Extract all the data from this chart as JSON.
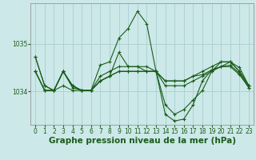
{
  "xlabel_label": "Graphe pression niveau de la mer (hPa)",
  "bg_color": "#cce8e8",
  "grid_color": "#aacfcf",
  "line_color": "#1a5c1a",
  "ylim": [
    1033.3,
    1035.85
  ],
  "xlim": [
    -0.5,
    23.5
  ],
  "yticks": [
    1034,
    1035
  ],
  "xticks": [
    0,
    1,
    2,
    3,
    4,
    5,
    6,
    7,
    8,
    9,
    10,
    11,
    12,
    13,
    14,
    15,
    16,
    17,
    18,
    19,
    20,
    21,
    22,
    23
  ],
  "series": [
    [
      1034.72,
      1034.12,
      1034.02,
      1034.42,
      1034.08,
      1034.02,
      1034.02,
      1034.55,
      1034.62,
      1035.12,
      1035.32,
      1035.68,
      1035.42,
      1034.42,
      1033.52,
      1033.38,
      1033.42,
      1033.72,
      1034.22,
      1034.45,
      1034.52,
      1034.62,
      1034.5,
      1034.12
    ],
    [
      1034.42,
      1034.02,
      1034.02,
      1034.42,
      1034.12,
      1034.02,
      1034.02,
      1034.32,
      1034.42,
      1034.52,
      1034.52,
      1034.52,
      1034.52,
      1034.42,
      1034.22,
      1034.22,
      1034.22,
      1034.32,
      1034.42,
      1034.52,
      1034.62,
      1034.62,
      1034.42,
      1034.12
    ],
    [
      1034.42,
      1034.02,
      1034.02,
      1034.42,
      1034.12,
      1034.02,
      1034.02,
      1034.22,
      1034.32,
      1034.42,
      1034.42,
      1034.42,
      1034.42,
      1034.42,
      1034.22,
      1034.22,
      1034.22,
      1034.32,
      1034.35,
      1034.45,
      1034.52,
      1034.55,
      1034.38,
      1034.08
    ],
    [
      1034.42,
      1034.02,
      1034.02,
      1034.42,
      1034.12,
      1034.02,
      1034.02,
      1034.22,
      1034.32,
      1034.42,
      1034.42,
      1034.42,
      1034.42,
      1034.42,
      1034.12,
      1034.12,
      1034.12,
      1034.22,
      1034.32,
      1034.42,
      1034.52,
      1034.52,
      1034.35,
      1034.08
    ],
    [
      1034.72,
      1034.12,
      1034.02,
      1034.12,
      1034.02,
      1034.02,
      1034.02,
      1034.22,
      1034.32,
      1034.82,
      1034.52,
      1034.52,
      1034.42,
      1034.42,
      1033.72,
      1033.52,
      1033.62,
      1033.82,
      1034.02,
      1034.42,
      1034.62,
      1034.62,
      1034.42,
      1034.12
    ]
  ],
  "tick_fontsize": 5.5,
  "xlabel_fontsize": 7.5
}
